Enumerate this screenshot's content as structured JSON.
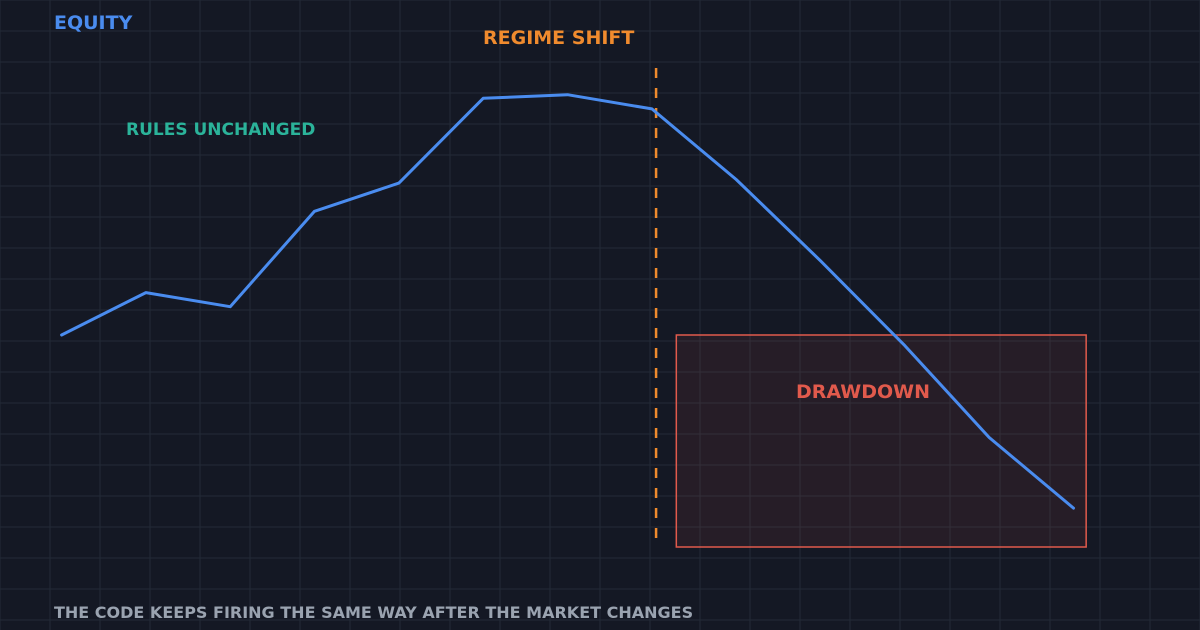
{
  "chart_data": {
    "type": "line",
    "title": "EQUITY",
    "xlabel": "",
    "ylabel": "",
    "grid": true,
    "x": [
      0,
      1,
      2,
      3,
      4,
      5,
      6,
      7,
      8,
      9,
      10,
      11,
      12
    ],
    "series": [
      {
        "values": [
          32,
          44,
          40,
          67,
          75,
          99,
          100,
          96,
          76,
          53,
          29,
          3,
          -17
        ]
      }
    ],
    "xlim": [
      -0.73,
      13.5
    ],
    "ylim": [
      -28,
      107
    ],
    "annotations": {
      "regime_shift": {
        "label": "REGIME SHIFT",
        "x": 7.05
      },
      "rules_unchanged": {
        "label": "RULES UNCHANGED"
      },
      "drawdown": {
        "label": "DRAWDOWN",
        "x_range": [
          7.29,
          12.15
        ],
        "y_range": [
          -28,
          32
        ]
      }
    },
    "caption": "THE CODE KEEPS FIRING THE SAME WAY AFTER THE MARKET CHANGES"
  },
  "colors": {
    "background": "#141824",
    "grid": "#232a37",
    "equity": "#4a8cef",
    "regime": "#f08b2e",
    "rules": "#2bb39a",
    "drawdown": "#e15a4c",
    "caption": "#9aa3b0"
  }
}
